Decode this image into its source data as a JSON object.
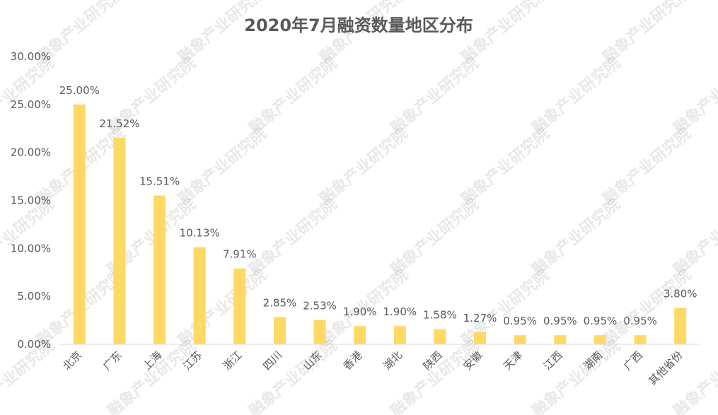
{
  "chart_data": {
    "type": "bar",
    "title": "2020年7月融资数量地区分布",
    "categories": [
      "北京",
      "广东",
      "上海",
      "江苏",
      "浙江",
      "四川",
      "山东",
      "香港",
      "湖北",
      "陕西",
      "安徽",
      "天津",
      "江西",
      "湖南",
      "广西",
      "其他省份"
    ],
    "values": [
      25.0,
      21.52,
      15.51,
      10.13,
      7.91,
      2.85,
      2.53,
      1.9,
      1.9,
      1.58,
      1.27,
      0.95,
      0.95,
      0.95,
      0.95,
      3.8
    ],
    "value_labels": [
      "25.00%",
      "21.52%",
      "15.51%",
      "10.13%",
      "7.91%",
      "2.85%",
      "2.53%",
      "1.90%",
      "1.90%",
      "1.58%",
      "1.27%",
      "0.95%",
      "0.95%",
      "0.95%",
      "0.95%",
      "3.80%"
    ],
    "yticks": [
      "0.00%",
      "5.00%",
      "10.00%",
      "15.00%",
      "20.00%",
      "25.00%",
      "30.00%"
    ],
    "ylim": [
      0,
      30
    ],
    "xlabel": "",
    "ylabel": "",
    "grid": false,
    "legend": "none",
    "colors": {
      "bar": "#FFD966",
      "axis_line": "#D9D9D9",
      "text": "#595959",
      "title": "#595959",
      "watermark": "#B0B0B0"
    }
  },
  "watermark": {
    "text": "融象产业研究院"
  }
}
